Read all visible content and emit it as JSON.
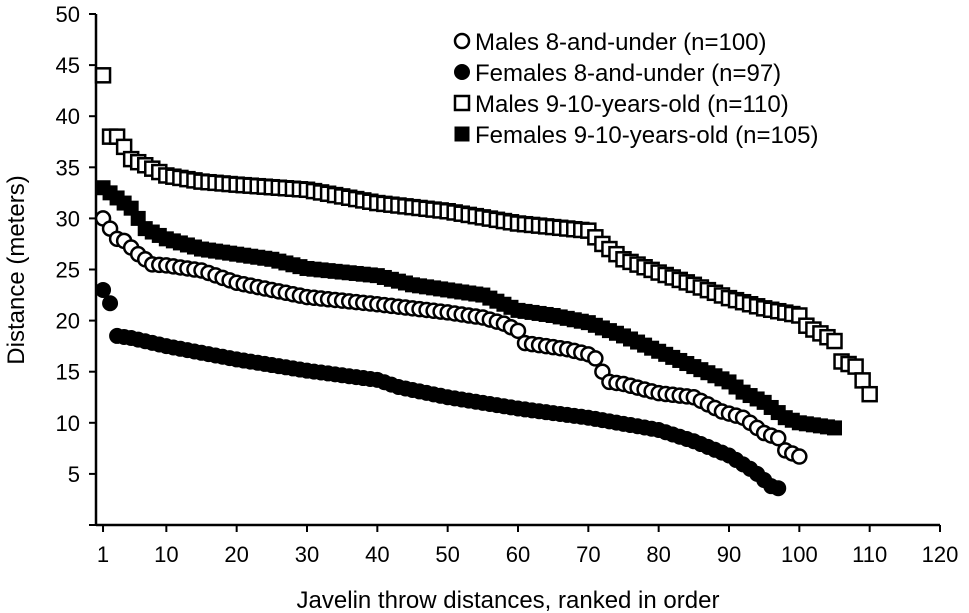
{
  "chart_data": {
    "type": "scatter",
    "xlabel": "Javelin throw distances, ranked in order",
    "ylabel": "Distance (meters)",
    "xlim": [
      0,
      120
    ],
    "ylim": [
      0,
      50
    ],
    "x_ticks": [
      "1",
      "10",
      "20",
      "30",
      "40",
      "50",
      "60",
      "70",
      "80",
      "90",
      "100",
      "110",
      "120"
    ],
    "y_ticks": [
      "5",
      "10",
      "15",
      "20",
      "25",
      "30",
      "35",
      "40",
      "45",
      "50"
    ],
    "grid": false,
    "legend_position": "top-right",
    "series": [
      {
        "name": "Males 8-and-under (n=100)",
        "marker": "open-circle",
        "n": 100,
        "knots": [
          [
            1,
            30
          ],
          [
            2,
            29
          ],
          [
            3,
            28
          ],
          [
            4,
            27.8
          ],
          [
            6,
            26.5
          ],
          [
            7,
            26
          ],
          [
            8,
            25.5
          ],
          [
            10,
            25.4
          ],
          [
            15,
            24.9
          ],
          [
            20,
            23.7
          ],
          [
            25,
            23
          ],
          [
            30,
            22.3
          ],
          [
            40,
            21.6
          ],
          [
            50,
            20.8
          ],
          [
            55,
            20.3
          ],
          [
            58,
            19.7
          ],
          [
            60,
            19
          ],
          [
            61,
            17.8
          ],
          [
            65,
            17.4
          ],
          [
            67,
            17.2
          ],
          [
            70,
            16.7
          ],
          [
            71,
            16.3
          ],
          [
            72,
            15
          ],
          [
            73,
            14
          ],
          [
            75,
            13.8
          ],
          [
            80,
            12.9
          ],
          [
            85,
            12.5
          ],
          [
            87,
            11.8
          ],
          [
            89,
            11.1
          ],
          [
            92,
            10.5
          ],
          [
            94,
            9.5
          ],
          [
            95,
            9
          ],
          [
            97,
            8.5
          ],
          [
            98,
            7.3
          ],
          [
            100,
            6.7
          ]
        ]
      },
      {
        "name": "Females 8-and-under (n=97)",
        "marker": "filled-circle",
        "n": 97,
        "knots": [
          [
            1,
            23
          ],
          [
            2,
            21.7
          ],
          [
            3,
            18.5
          ],
          [
            5,
            18.3
          ],
          [
            10,
            17.5
          ],
          [
            20,
            16.2
          ],
          [
            30,
            15.1
          ],
          [
            40,
            14.2
          ],
          [
            43,
            13.5
          ],
          [
            50,
            12.5
          ],
          [
            60,
            11.4
          ],
          [
            70,
            10.5
          ],
          [
            80,
            9.3
          ],
          [
            85,
            8.2
          ],
          [
            90,
            6.8
          ],
          [
            93,
            5.5
          ],
          [
            94,
            5
          ],
          [
            96,
            3.8
          ],
          [
            97,
            3.6
          ]
        ]
      },
      {
        "name": "Males 9-10-years-old (n=110)",
        "marker": "open-square",
        "n": 110,
        "knots": [
          [
            1,
            44
          ],
          [
            2,
            38
          ],
          [
            3,
            38
          ],
          [
            4,
            37
          ],
          [
            5,
            35.8
          ],
          [
            7,
            35.2
          ],
          [
            10,
            34.2
          ],
          [
            15,
            33.6
          ],
          [
            20,
            33.3
          ],
          [
            30,
            32.8
          ],
          [
            40,
            31.5
          ],
          [
            50,
            30.7
          ],
          [
            60,
            29.5
          ],
          [
            70,
            28.8
          ],
          [
            72,
            27.5
          ],
          [
            75,
            26
          ],
          [
            80,
            24.7
          ],
          [
            85,
            23.5
          ],
          [
            90,
            22.2
          ],
          [
            95,
            21.2
          ],
          [
            100,
            20.5
          ],
          [
            101,
            19.5
          ],
          [
            105,
            18
          ],
          [
            106,
            16
          ],
          [
            108,
            15.5
          ],
          [
            110,
            12.8
          ]
        ]
      },
      {
        "name": "Females 9-10-years-old (n=105)",
        "marker": "filled-square",
        "n": 105,
        "knots": [
          [
            1,
            33
          ],
          [
            3,
            32
          ],
          [
            5,
            31
          ],
          [
            7,
            29
          ],
          [
            10,
            28
          ],
          [
            15,
            27
          ],
          [
            20,
            26.5
          ],
          [
            25,
            26
          ],
          [
            30,
            25.1
          ],
          [
            40,
            24.4
          ],
          [
            45,
            23.5
          ],
          [
            50,
            23
          ],
          [
            55,
            22.5
          ],
          [
            60,
            21
          ],
          [
            65,
            20.5
          ],
          [
            70,
            19.8
          ],
          [
            75,
            18.5
          ],
          [
            80,
            17
          ],
          [
            85,
            15.5
          ],
          [
            90,
            14
          ],
          [
            92,
            13
          ],
          [
            95,
            12
          ],
          [
            98,
            10.5
          ],
          [
            100,
            10
          ],
          [
            105,
            9.5
          ]
        ]
      }
    ]
  }
}
